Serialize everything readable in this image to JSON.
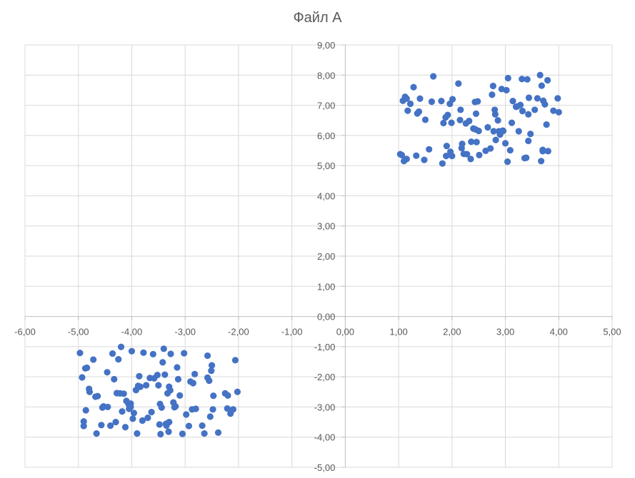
{
  "chart_data": {
    "type": "scatter",
    "title": "Файл А",
    "xlabel": "",
    "ylabel": "",
    "xlim": [
      -6,
      5
    ],
    "ylim": [
      -5,
      9
    ],
    "x_ticks": [
      "-6,00",
      "-5,00",
      "-4,00",
      "-3,00",
      "-2,00",
      "-1,00",
      "0,00",
      "1,00",
      "2,00",
      "3,00",
      "4,00",
      "5,00"
    ],
    "y_ticks": [
      "-5,00",
      "-4,00",
      "-3,00",
      "-2,00",
      "-1,00",
      "0,00",
      "1,00",
      "2,00",
      "3,00",
      "4,00",
      "5,00",
      "6,00",
      "7,00",
      "8,00",
      "9,00"
    ],
    "grid": true,
    "legend": "none",
    "color": "#4472c4",
    "series": [
      {
        "points": [
          [
            1.03,
            5.38
          ],
          [
            1.06,
            5.35
          ],
          [
            1.08,
            7.15
          ],
          [
            1.1,
            5.15
          ],
          [
            1.12,
            7.28
          ],
          [
            1.15,
            5.22
          ],
          [
            1.17,
            6.82
          ],
          [
            1.22,
            7.05
          ],
          [
            1.28,
            7.6
          ],
          [
            1.33,
            5.33
          ],
          [
            1.35,
            6.73
          ],
          [
            1.38,
            6.79
          ],
          [
            1.4,
            7.22
          ],
          [
            1.48,
            5.19
          ],
          [
            1.5,
            6.52
          ],
          [
            1.57,
            5.54
          ],
          [
            1.62,
            7.12
          ],
          [
            1.65,
            7.96
          ],
          [
            1.8,
            7.14
          ],
          [
            1.82,
            5.07
          ],
          [
            1.84,
            6.41
          ],
          [
            1.88,
            6.6
          ],
          [
            1.89,
            5.32
          ],
          [
            1.9,
            5.65
          ],
          [
            1.92,
            6.68
          ],
          [
            1.96,
            7.05
          ],
          [
            1.97,
            5.46
          ],
          [
            1.99,
            6.42
          ],
          [
            2.0,
            5.32
          ],
          [
            2.01,
            7.2
          ],
          [
            2.12,
            7.72
          ],
          [
            2.15,
            6.51
          ],
          [
            2.16,
            6.85
          ],
          [
            2.18,
            5.58
          ],
          [
            2.19,
            5.72
          ],
          [
            2.22,
            5.39
          ],
          [
            2.26,
            6.4
          ],
          [
            2.28,
            5.38
          ],
          [
            2.32,
            6.48
          ],
          [
            2.35,
            5.22
          ],
          [
            2.36,
            5.79
          ],
          [
            2.4,
            6.23
          ],
          [
            2.43,
            7.11
          ],
          [
            2.45,
            6.72
          ],
          [
            2.46,
            5.78
          ],
          [
            2.48,
            7.13
          ],
          [
            2.5,
            6.15
          ],
          [
            2.51,
            5.35
          ],
          [
            2.63,
            5.49
          ],
          [
            2.67,
            6.27
          ],
          [
            2.72,
            5.57
          ],
          [
            2.75,
            7.35
          ],
          [
            2.77,
            7.64
          ],
          [
            2.78,
            6.14
          ],
          [
            2.8,
            6.85
          ],
          [
            2.81,
            6.7
          ],
          [
            2.82,
            5.85
          ],
          [
            2.86,
            6.5
          ],
          [
            2.88,
            6.14
          ],
          [
            2.9,
            6.03
          ],
          [
            2.93,
            7.54
          ],
          [
            2.96,
            6.15
          ],
          [
            3.0,
            5.74
          ],
          [
            3.02,
            7.5
          ],
          [
            3.04,
            5.13
          ],
          [
            3.05,
            7.9
          ],
          [
            3.09,
            5.51
          ],
          [
            3.12,
            6.42
          ],
          [
            3.14,
            7.14
          ],
          [
            3.22,
            6.96
          ],
          [
            3.25,
            6.14
          ],
          [
            3.28,
            7.01
          ],
          [
            3.31,
            7.87
          ],
          [
            3.32,
            6.81
          ],
          [
            3.36,
            5.25
          ],
          [
            3.39,
            5.26
          ],
          [
            3.41,
            7.86
          ],
          [
            3.43,
            6.7
          ],
          [
            3.44,
            7.25
          ],
          [
            3.47,
            6.05
          ],
          [
            3.55,
            6.85
          ],
          [
            3.6,
            7.23
          ],
          [
            3.65,
            8.0
          ],
          [
            3.67,
            5.15
          ],
          [
            3.68,
            7.65
          ],
          [
            3.7,
            5.52
          ],
          [
            3.71,
            7.15
          ],
          [
            3.74,
            7.03
          ],
          [
            3.77,
            6.36
          ],
          [
            3.79,
            7.83
          ],
          [
            3.9,
            6.82
          ],
          [
            3.98,
            7.23
          ],
          [
            4.0,
            6.77
          ],
          [
            3.7,
            5.48
          ],
          [
            3.43,
            5.82
          ],
          [
            2.44,
            6.2
          ],
          [
            1.15,
            7.22
          ],
          [
            3.8,
            5.48
          ],
          [
            2.95,
            6.16
          ],
          [
            3.2,
            6.95
          ]
        ]
      },
      {
        "points": [
          [
            -4.97,
            -1.21
          ],
          [
            -4.93,
            -2.02
          ],
          [
            -4.9,
            -3.63
          ],
          [
            -4.87,
            -1.72
          ],
          [
            -4.86,
            -3.11
          ],
          [
            -4.84,
            -1.7
          ],
          [
            -4.8,
            -2.4
          ],
          [
            -4.79,
            -2.5
          ],
          [
            -4.72,
            -1.43
          ],
          [
            -4.68,
            -2.66
          ],
          [
            -4.66,
            -3.88
          ],
          [
            -4.64,
            -2.64
          ],
          [
            -4.57,
            -3.6
          ],
          [
            -4.55,
            -3.02
          ],
          [
            -4.53,
            -2.98
          ],
          [
            -4.46,
            -1.85
          ],
          [
            -4.4,
            -3.62
          ],
          [
            -4.36,
            -1.23
          ],
          [
            -4.33,
            -2.08
          ],
          [
            -4.3,
            -3.5
          ],
          [
            -4.28,
            -2.54
          ],
          [
            -4.25,
            -1.42
          ],
          [
            -4.2,
            -1.01
          ],
          [
            -4.18,
            -3.15
          ],
          [
            -4.15,
            -2.56
          ],
          [
            -4.12,
            -3.67
          ],
          [
            -4.1,
            -2.8
          ],
          [
            -4.06,
            -2.9
          ],
          [
            -4.05,
            -3.06
          ],
          [
            -4.02,
            -3.0
          ],
          [
            -4.0,
            -1.15
          ],
          [
            -3.98,
            -3.39
          ],
          [
            -3.96,
            -3.2
          ],
          [
            -3.92,
            -2.44
          ],
          [
            -3.9,
            -3.88
          ],
          [
            -3.86,
            -1.98
          ],
          [
            -3.84,
            -2.33
          ],
          [
            -3.8,
            -3.45
          ],
          [
            -3.78,
            -1.2
          ],
          [
            -3.73,
            -2.28
          ],
          [
            -3.7,
            -3.36
          ],
          [
            -3.66,
            -2.04
          ],
          [
            -3.63,
            -3.17
          ],
          [
            -3.6,
            -1.25
          ],
          [
            -3.52,
            -1.94
          ],
          [
            -3.5,
            -2.28
          ],
          [
            -3.48,
            -3.58
          ],
          [
            -3.46,
            -3.9
          ],
          [
            -3.44,
            -3.02
          ],
          [
            -3.42,
            -1.52
          ],
          [
            -3.4,
            -1.07
          ],
          [
            -3.38,
            -1.93
          ],
          [
            -3.35,
            -3.62
          ],
          [
            -3.33,
            -2.55
          ],
          [
            -3.31,
            -3.82
          ],
          [
            -3.3,
            -2.33
          ],
          [
            -3.28,
            -2.45
          ],
          [
            -3.27,
            -1.24
          ],
          [
            -3.22,
            -2.85
          ],
          [
            -3.2,
            -3.01
          ],
          [
            -3.18,
            -2.98
          ],
          [
            -3.15,
            -1.69
          ],
          [
            -3.13,
            -2.08
          ],
          [
            -3.1,
            -2.62
          ],
          [
            -3.05,
            -3.89
          ],
          [
            -3.02,
            -1.22
          ],
          [
            -2.98,
            -3.25
          ],
          [
            -2.93,
            -3.63
          ],
          [
            -2.9,
            -2.16
          ],
          [
            -2.87,
            -3.08
          ],
          [
            -2.85,
            -2.21
          ],
          [
            -2.82,
            -1.91
          ],
          [
            -2.68,
            -3.62
          ],
          [
            -2.64,
            -3.88
          ],
          [
            -2.58,
            -1.3
          ],
          [
            -2.55,
            -2.13
          ],
          [
            -2.53,
            -3.32
          ],
          [
            -2.51,
            -1.8
          ],
          [
            -2.5,
            -1.62
          ],
          [
            -2.48,
            -3.08
          ],
          [
            -2.47,
            -2.63
          ],
          [
            -2.38,
            -3.85
          ],
          [
            -2.25,
            -2.55
          ],
          [
            -2.21,
            -3.05
          ],
          [
            -2.2,
            -2.62
          ],
          [
            -2.15,
            -3.22
          ],
          [
            -2.1,
            -3.08
          ],
          [
            -2.06,
            -1.45
          ],
          [
            -2.02,
            -2.5
          ],
          [
            -3.88,
            -2.3
          ],
          [
            -3.47,
            -2.9
          ],
          [
            -4.22,
            -2.55
          ],
          [
            -3.58,
            -2.05
          ],
          [
            -4.02,
            -2.89
          ],
          [
            -2.58,
            -2.03
          ],
          [
            -3.3,
            -3.5
          ],
          [
            -3.36,
            -3.56
          ],
          [
            -4.45,
            -3.0
          ],
          [
            -4.9,
            -3.48
          ],
          [
            -2.8,
            -3.06
          ]
        ]
      }
    ]
  }
}
